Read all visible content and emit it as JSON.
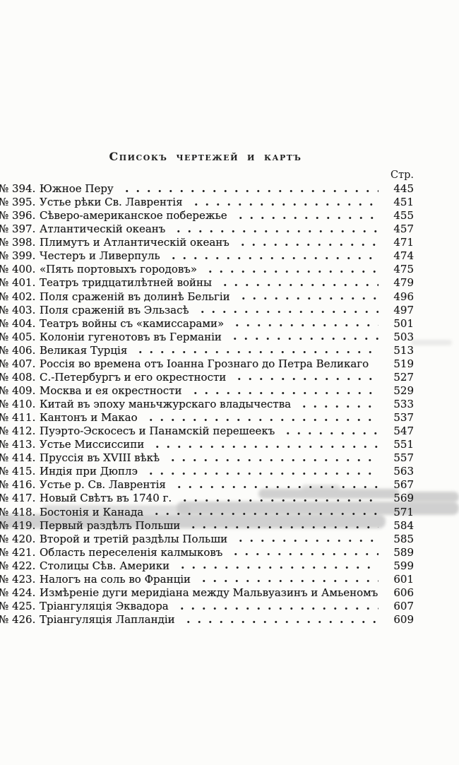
{
  "page": {
    "title": "Списокъ чертежей и картъ",
    "column_header": "Стр.",
    "entries": [
      {
        "num": "№ 394.",
        "title": "Южное Перу",
        "page": "445"
      },
      {
        "num": "№ 395.",
        "title": "Устье рѣки Св. Лаврентія",
        "page": "451"
      },
      {
        "num": "№ 396.",
        "title": "Сѣверо-американское побережье",
        "page": "455"
      },
      {
        "num": "№ 397.",
        "title": "Атлантическій океанъ",
        "page": "457"
      },
      {
        "num": "№ 398.",
        "title": "Плимутъ и Атлантическій океанъ",
        "page": "471"
      },
      {
        "num": "№ 399.",
        "title": "Честеръ и Ливерпуль",
        "page": "474"
      },
      {
        "num": "№ 400.",
        "title": "«Пять портовыхъ городовъ»",
        "page": "475"
      },
      {
        "num": "№ 401.",
        "title": "Театръ тридцатилѣтней войны",
        "page": "479"
      },
      {
        "num": "№ 402.",
        "title": "Поля сраженій въ долинѣ Бельгіи",
        "page": "496"
      },
      {
        "num": "№ 403.",
        "title": "Поля сраженій въ Эльзасѣ",
        "page": "497"
      },
      {
        "num": "№ 404.",
        "title": "Театръ войны съ «камиссарами»",
        "page": "501"
      },
      {
        "num": "№ 405.",
        "title": "Колоніи гугенотовъ въ Германіи",
        "page": "503"
      },
      {
        "num": "№ 406.",
        "title": "Великая Турція",
        "page": "513"
      },
      {
        "num": "№ 407.",
        "title": "Россія во времена отъ Іоанна Грознаго до Петра Великаго",
        "page": "519"
      },
      {
        "num": "№ 408.",
        "title": "С.-Петербургъ и его окрестности",
        "page": "527"
      },
      {
        "num": "№ 409.",
        "title": "Москва и ея окрестности",
        "page": "529"
      },
      {
        "num": "№ 410.",
        "title": "Китай въ эпоху маньчжурскаго владычества",
        "page": "533"
      },
      {
        "num": "№ 411.",
        "title": "Кантонъ и Макао",
        "page": "537"
      },
      {
        "num": "№ 412.",
        "title": "Пуэрто-Эскосесъ и Панамскій перешеекъ",
        "page": "547"
      },
      {
        "num": "№ 413.",
        "title": "Устье Миссиссипи",
        "page": "551"
      },
      {
        "num": "№ 414.",
        "title": "Пруссія въ XVIII вѣкѣ",
        "page": "557"
      },
      {
        "num": "№ 415.",
        "title": "Индія при Дюплэ",
        "page": "563"
      },
      {
        "num": "№ 416.",
        "title": "Устье р. Св. Лаврентія",
        "page": "567"
      },
      {
        "num": "№ 417.",
        "title": "Новый Свѣтъ въ 1740 г.",
        "page": "569"
      },
      {
        "num": "№ 418.",
        "title": "Бостонія и Канада",
        "page": "571"
      },
      {
        "num": "№ 419.",
        "title": "Первый раздѣлъ Польши",
        "page": "584"
      },
      {
        "num": "№ 420.",
        "title": "Второй и третій раздѣлы Польши",
        "page": "585"
      },
      {
        "num": "№ 421.",
        "title": "Область переселенія калмыковъ",
        "page": "589"
      },
      {
        "num": "№ 422.",
        "title": "Столицы Сѣв. Америки",
        "page": "599"
      },
      {
        "num": "№ 423.",
        "title": "Налогъ на соль во Франціи",
        "page": "601"
      },
      {
        "num": "№ 424.",
        "title": "Измѣреніе дуги меридіана между Мальвуазинъ и Амьеномъ",
        "page": "606"
      },
      {
        "num": "№ 425.",
        "title": "Тріангуляція Эквадора",
        "page": "607"
      },
      {
        "num": "№ 426.",
        "title": "Тріангуляція Лапландіи",
        "page": "609"
      }
    ]
  }
}
